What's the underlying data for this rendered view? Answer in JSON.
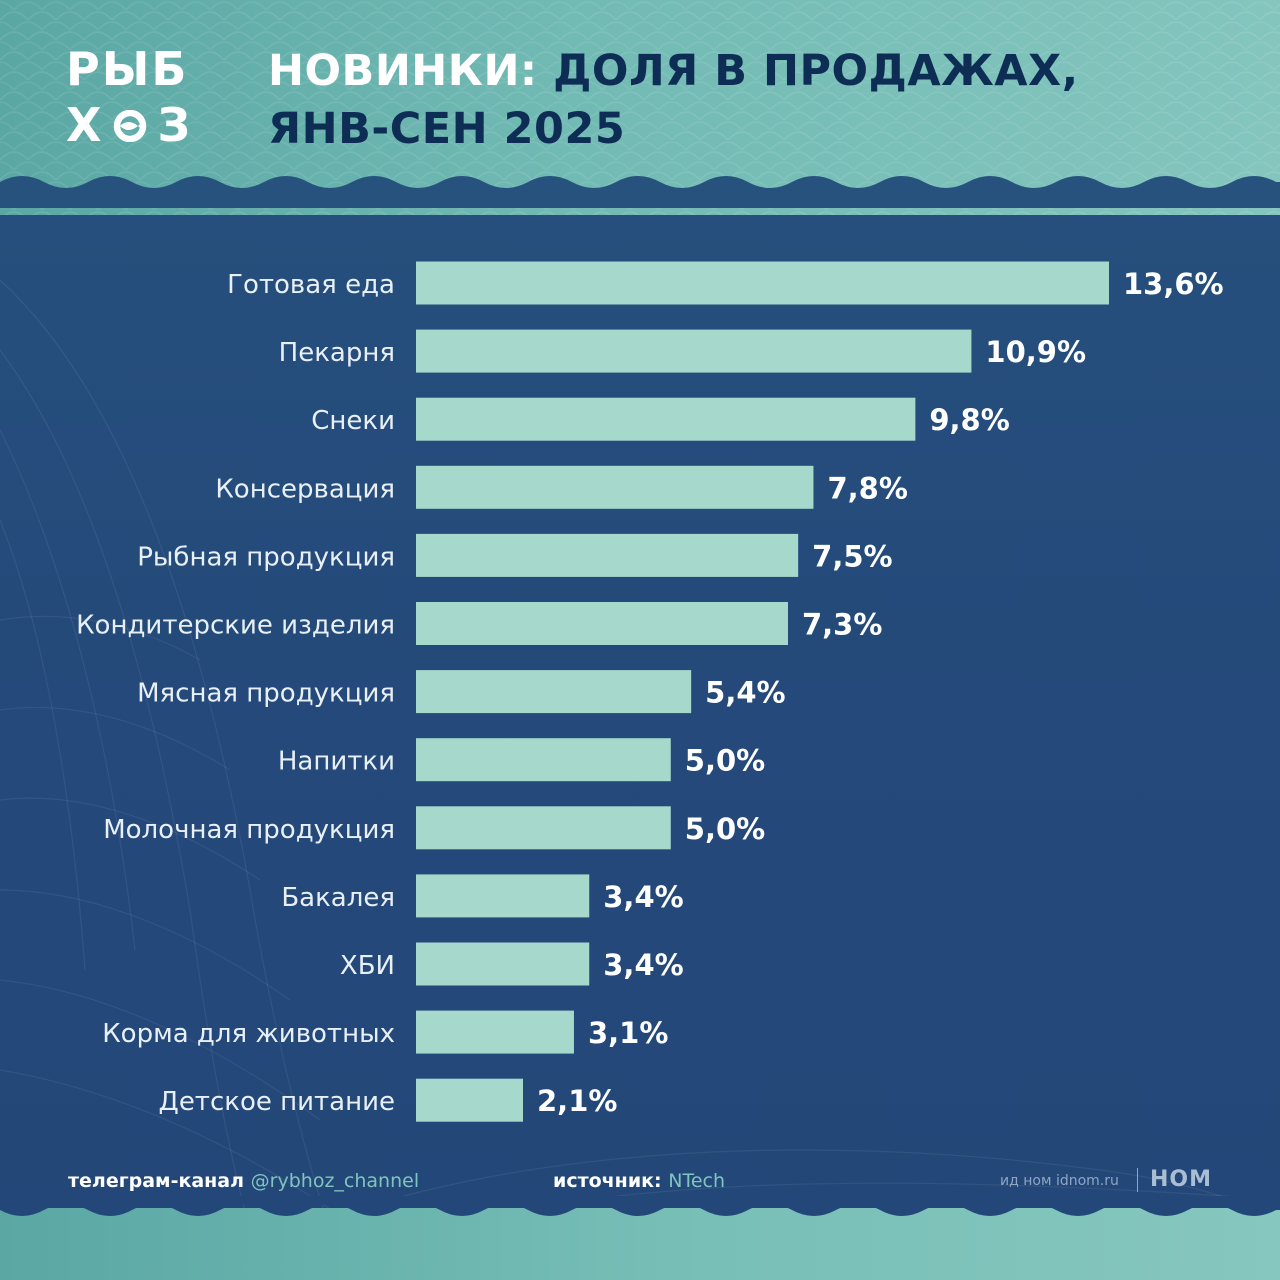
{
  "brand": {
    "logo_top": "РЫБ",
    "logo_bottom": "Х   З",
    "logo_fish_icon": "fish-icon",
    "colors": {
      "header_teal": "#72bab4",
      "navy": "#24497a",
      "bar": "#a6d8cc",
      "label": "#e8f0f6",
      "value": "#ffffff",
      "title_dark": "#0e2d55"
    }
  },
  "title": {
    "line1_accent": "НОВИНКИ:",
    "line1_rest": " ДОЛЯ В ПРОДАЖАХ,",
    "line2": "ЯНВ-СЕН 2025"
  },
  "chart_data": {
    "type": "bar",
    "orientation": "horizontal",
    "title": "НОВИНКИ: ДОЛЯ В ПРОДАЖАХ, ЯНВ-СЕН 2025",
    "xlabel": "",
    "ylabel": "",
    "categories": [
      "Готовая еда",
      "Пекарня",
      "Снеки",
      "Консервация",
      "Рыбная продукция",
      "Кондитерские изделия",
      "Мясная продукция",
      "Напитки",
      "Молочная продукция",
      "Бакалея",
      "ХБИ",
      "Корма для животных",
      "Детское питание"
    ],
    "values": [
      13.6,
      10.9,
      9.8,
      7.8,
      7.5,
      7.3,
      5.4,
      5.0,
      5.0,
      3.4,
      3.4,
      3.1,
      2.1
    ],
    "value_labels": [
      "13,6%",
      "10,9%",
      "9,8%",
      "7,8%",
      "7,5%",
      "7,3%",
      "5,4%",
      "5,0%",
      "5,0%",
      "3,4%",
      "3,4%",
      "3,1%",
      "2,1%"
    ],
    "unit": "%",
    "xlim": [
      0,
      13.6
    ],
    "grid": false,
    "legend": "none"
  },
  "footer": {
    "telegram_label": "телеграм-канал ",
    "telegram_handle": "@rybhoz_channel",
    "source_label": "источник: ",
    "source_name": "NTech",
    "idnom_text": "ид ном idnom.ru",
    "nom_logo": "НОМ"
  }
}
